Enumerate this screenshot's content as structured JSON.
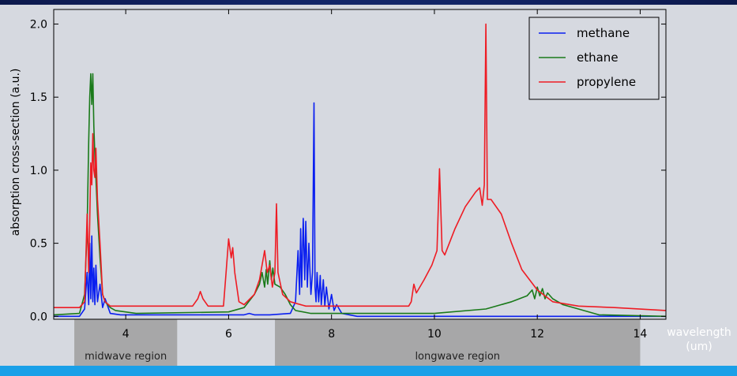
{
  "colors": {
    "methane": "#0a1ff0",
    "ethane": "#1a7a1a",
    "propylene": "#ee1c24",
    "plot_bg": "#d6d9e0",
    "region_band": "#a7a7a8"
  },
  "chart_data": {
    "type": "line",
    "title": "",
    "xlabel": "wavelength (um)",
    "xlabel_lines": [
      "wavelength",
      "(um)"
    ],
    "ylabel": "absorption cross-section (a.u.)",
    "xlim": [
      2.6,
      14.5
    ],
    "ylim": [
      -0.02,
      2.1
    ],
    "xticks": [
      4,
      6,
      8,
      10,
      12,
      14
    ],
    "xtick_labels": [
      "4",
      "6",
      "8",
      "10",
      "12",
      "14"
    ],
    "yticks": [
      0.0,
      0.5,
      1.0,
      1.5,
      2.0
    ],
    "ytick_labels": [
      "0.0",
      "0.5",
      "1.0",
      "1.5",
      "2.0"
    ],
    "grid": false,
    "legend_position": "top-right",
    "series": [
      {
        "name": "methane",
        "color_key": "methane",
        "points": [
          [
            2.6,
            0.0
          ],
          [
            3.1,
            0.0
          ],
          [
            3.2,
            0.05
          ],
          [
            3.25,
            0.3
          ],
          [
            3.28,
            0.08
          ],
          [
            3.3,
            0.5
          ],
          [
            3.32,
            0.12
          ],
          [
            3.34,
            0.55
          ],
          [
            3.36,
            0.1
          ],
          [
            3.38,
            0.33
          ],
          [
            3.4,
            0.08
          ],
          [
            3.42,
            0.35
          ],
          [
            3.45,
            0.1
          ],
          [
            3.5,
            0.22
          ],
          [
            3.55,
            0.06
          ],
          [
            3.6,
            0.12
          ],
          [
            3.7,
            0.02
          ],
          [
            3.9,
            0.01
          ],
          [
            6.3,
            0.01
          ],
          [
            6.4,
            0.02
          ],
          [
            6.5,
            0.01
          ],
          [
            6.8,
            0.01
          ],
          [
            7.2,
            0.02
          ],
          [
            7.3,
            0.1
          ],
          [
            7.35,
            0.45
          ],
          [
            7.38,
            0.15
          ],
          [
            7.4,
            0.6
          ],
          [
            7.42,
            0.2
          ],
          [
            7.45,
            0.67
          ],
          [
            7.48,
            0.25
          ],
          [
            7.5,
            0.65
          ],
          [
            7.53,
            0.2
          ],
          [
            7.56,
            0.5
          ],
          [
            7.6,
            0.15
          ],
          [
            7.63,
            0.3
          ],
          [
            7.66,
            1.46
          ],
          [
            7.68,
            0.2
          ],
          [
            7.7,
            0.1
          ],
          [
            7.72,
            0.3
          ],
          [
            7.75,
            0.1
          ],
          [
            7.78,
            0.28
          ],
          [
            7.8,
            0.08
          ],
          [
            7.84,
            0.25
          ],
          [
            7.87,
            0.07
          ],
          [
            7.9,
            0.2
          ],
          [
            7.95,
            0.05
          ],
          [
            8.0,
            0.15
          ],
          [
            8.05,
            0.04
          ],
          [
            8.1,
            0.08
          ],
          [
            8.2,
            0.02
          ],
          [
            8.5,
            0.0
          ],
          [
            14.5,
            0.0
          ]
        ]
      },
      {
        "name": "ethane",
        "color_key": "ethane",
        "points": [
          [
            2.6,
            0.01
          ],
          [
            3.1,
            0.02
          ],
          [
            3.2,
            0.15
          ],
          [
            3.25,
            0.6
          ],
          [
            3.28,
            1.2
          ],
          [
            3.3,
            1.5
          ],
          [
            3.32,
            1.66
          ],
          [
            3.34,
            1.45
          ],
          [
            3.36,
            1.66
          ],
          [
            3.38,
            1.3
          ],
          [
            3.4,
            1.1
          ],
          [
            3.42,
            0.95
          ],
          [
            3.45,
            0.7
          ],
          [
            3.5,
            0.4
          ],
          [
            3.55,
            0.15
          ],
          [
            3.6,
            0.1
          ],
          [
            3.7,
            0.06
          ],
          [
            3.8,
            0.04
          ],
          [
            4.2,
            0.02
          ],
          [
            6.0,
            0.03
          ],
          [
            6.3,
            0.06
          ],
          [
            6.5,
            0.15
          ],
          [
            6.6,
            0.22
          ],
          [
            6.65,
            0.3
          ],
          [
            6.7,
            0.2
          ],
          [
            6.73,
            0.32
          ],
          [
            6.76,
            0.22
          ],
          [
            6.8,
            0.38
          ],
          [
            6.83,
            0.25
          ],
          [
            6.86,
            0.33
          ],
          [
            6.9,
            0.22
          ],
          [
            7.0,
            0.2
          ],
          [
            7.1,
            0.15
          ],
          [
            7.2,
            0.08
          ],
          [
            7.3,
            0.04
          ],
          [
            7.6,
            0.02
          ],
          [
            10.0,
            0.02
          ],
          [
            11.0,
            0.05
          ],
          [
            11.5,
            0.1
          ],
          [
            11.8,
            0.14
          ],
          [
            11.9,
            0.18
          ],
          [
            11.95,
            0.12
          ],
          [
            12.0,
            0.2
          ],
          [
            12.05,
            0.14
          ],
          [
            12.1,
            0.19
          ],
          [
            12.15,
            0.12
          ],
          [
            12.2,
            0.16
          ],
          [
            12.3,
            0.12
          ],
          [
            12.5,
            0.08
          ],
          [
            12.8,
            0.05
          ],
          [
            13.2,
            0.01
          ],
          [
            14.5,
            0.0
          ]
        ]
      },
      {
        "name": "propylene",
        "color_key": "propylene",
        "points": [
          [
            2.6,
            0.06
          ],
          [
            3.1,
            0.06
          ],
          [
            3.2,
            0.1
          ],
          [
            3.25,
            0.7
          ],
          [
            3.28,
            0.3
          ],
          [
            3.3,
            0.65
          ],
          [
            3.32,
            1.05
          ],
          [
            3.34,
            0.9
          ],
          [
            3.36,
            1.25
          ],
          [
            3.38,
            1.0
          ],
          [
            3.4,
            0.95
          ],
          [
            3.42,
            1.15
          ],
          [
            3.45,
            0.8
          ],
          [
            3.5,
            0.5
          ],
          [
            3.55,
            0.15
          ],
          [
            3.6,
            0.1
          ],
          [
            3.7,
            0.07
          ],
          [
            5.3,
            0.07
          ],
          [
            5.4,
            0.12
          ],
          [
            5.45,
            0.17
          ],
          [
            5.5,
            0.12
          ],
          [
            5.6,
            0.07
          ],
          [
            5.9,
            0.07
          ],
          [
            5.95,
            0.3
          ],
          [
            6.0,
            0.53
          ],
          [
            6.05,
            0.4
          ],
          [
            6.08,
            0.47
          ],
          [
            6.12,
            0.3
          ],
          [
            6.2,
            0.1
          ],
          [
            6.3,
            0.08
          ],
          [
            6.5,
            0.15
          ],
          [
            6.6,
            0.25
          ],
          [
            6.7,
            0.45
          ],
          [
            6.75,
            0.3
          ],
          [
            6.8,
            0.35
          ],
          [
            6.85,
            0.2
          ],
          [
            6.9,
            0.3
          ],
          [
            6.93,
            0.77
          ],
          [
            6.96,
            0.3
          ],
          [
            7.05,
            0.15
          ],
          [
            7.2,
            0.1
          ],
          [
            7.5,
            0.07
          ],
          [
            9.5,
            0.07
          ],
          [
            9.55,
            0.1
          ],
          [
            9.6,
            0.22
          ],
          [
            9.65,
            0.16
          ],
          [
            9.8,
            0.25
          ],
          [
            9.95,
            0.35
          ],
          [
            10.05,
            0.45
          ],
          [
            10.1,
            1.01
          ],
          [
            10.15,
            0.45
          ],
          [
            10.2,
            0.42
          ],
          [
            10.4,
            0.6
          ],
          [
            10.6,
            0.75
          ],
          [
            10.8,
            0.85
          ],
          [
            10.88,
            0.88
          ],
          [
            10.93,
            0.76
          ],
          [
            10.97,
            0.9
          ],
          [
            11.0,
            2.0
          ],
          [
            11.03,
            0.8
          ],
          [
            11.1,
            0.8
          ],
          [
            11.3,
            0.7
          ],
          [
            11.5,
            0.5
          ],
          [
            11.7,
            0.32
          ],
          [
            12.0,
            0.18
          ],
          [
            12.3,
            0.1
          ],
          [
            12.8,
            0.07
          ],
          [
            13.5,
            0.06
          ],
          [
            14.5,
            0.04
          ]
        ]
      }
    ],
    "regions": [
      {
        "label": "midwave region",
        "x_start": 3.0,
        "x_end": 5.0
      },
      {
        "label": "longwave region",
        "x_start": 6.9,
        "x_end": 14.0
      }
    ]
  }
}
